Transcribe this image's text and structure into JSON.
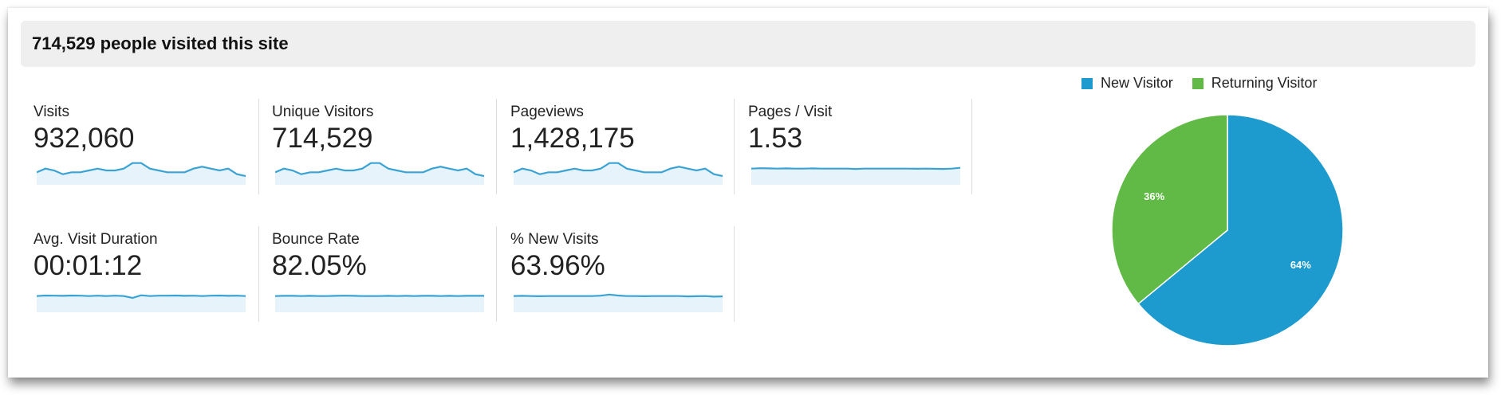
{
  "header": {
    "title": "714,529 people visited this site"
  },
  "metrics": [
    {
      "label": "Visits",
      "value": "932,060",
      "spark": [
        5,
        7,
        6,
        4,
        5,
        5,
        6,
        7,
        6,
        6,
        7,
        10,
        10,
        7,
        6,
        5,
        5,
        5,
        7,
        8,
        7,
        6,
        7,
        4,
        3
      ]
    },
    {
      "label": "Unique Visitors",
      "value": "714,529",
      "spark": [
        5,
        7,
        6,
        4,
        5,
        5,
        6,
        7,
        6,
        6,
        7,
        10,
        10,
        7,
        6,
        5,
        5,
        5,
        7,
        8,
        7,
        6,
        7,
        4,
        3
      ]
    },
    {
      "label": "Pageviews",
      "value": "1,428,175",
      "spark": [
        5,
        7,
        6,
        4,
        5,
        5,
        6,
        7,
        6,
        6,
        7,
        10,
        10,
        7,
        6,
        5,
        5,
        5,
        7,
        8,
        7,
        6,
        7,
        4,
        3
      ]
    },
    {
      "label": "Pages / Visit",
      "value": "1.53",
      "spark": [
        7,
        7.2,
        7.1,
        7,
        7.1,
        7,
        7,
        7.1,
        7,
        7,
        7,
        7,
        6.8,
        7,
        7,
        7,
        7,
        7,
        7,
        6.9,
        7,
        6.9,
        6.8,
        7,
        7.4
      ]
    },
    {
      "label": "Avg. Visit Duration",
      "value": "00:01:12",
      "spark": [
        7,
        7.3,
        7.2,
        7.1,
        7.3,
        7.2,
        7,
        7.2,
        7,
        7.2,
        7,
        6,
        7.4,
        7,
        7.2,
        7.2,
        7.3,
        7.1,
        7.2,
        7,
        7.2,
        7.3,
        7.1,
        7.2,
        7
      ]
    },
    {
      "label": "Bounce Rate",
      "value": "82.05%",
      "spark": [
        7,
        7.1,
        7.1,
        7,
        7.1,
        7,
        7,
        7.1,
        7.2,
        7.1,
        7,
        7,
        7,
        7.1,
        7,
        7.1,
        7,
        7.1,
        7.1,
        7,
        7.1,
        7,
        7.1,
        7.1,
        7.1
      ]
    },
    {
      "label": "% New Visits",
      "value": "63.96%",
      "spark": [
        7,
        7.1,
        7,
        6.9,
        7,
        7,
        7,
        7,
        7,
        7,
        7.2,
        7.8,
        7.3,
        7,
        7,
        6.9,
        7,
        7,
        7,
        7,
        6.8,
        6.9,
        7,
        6.7,
        6.8
      ]
    }
  ],
  "colors": {
    "new": "#1e9bce",
    "returning": "#60ba45",
    "spark_line": "#3aa3d3",
    "spark_fill": "#e6f3fb"
  },
  "chart_data": {
    "type": "pie",
    "legend_position": "top",
    "slices": [
      {
        "name": "New Visitor",
        "value": 64,
        "label": "64%"
      },
      {
        "name": "Returning Visitor",
        "value": 36,
        "label": "36%"
      }
    ]
  }
}
